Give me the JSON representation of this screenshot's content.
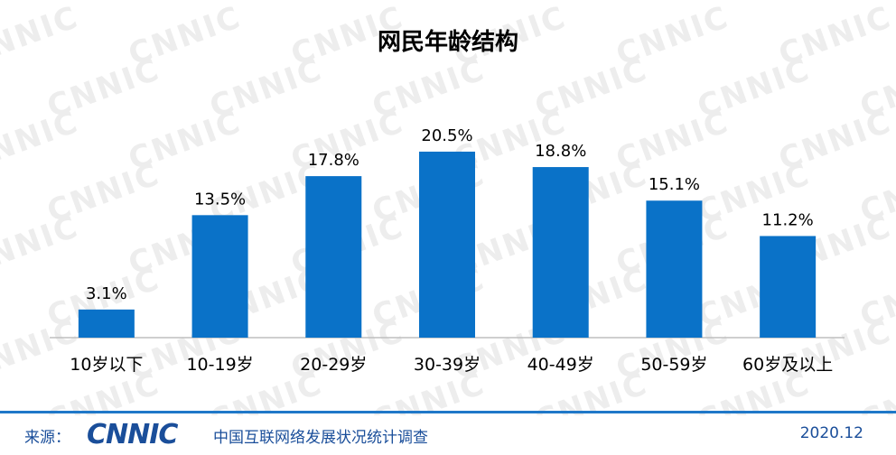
{
  "chart_data": {
    "type": "bar",
    "title": "网民年龄结构",
    "categories": [
      "10岁以下",
      "10-19岁",
      "20-29岁",
      "30-39岁",
      "40-49岁",
      "50-59岁",
      "60岁及以上"
    ],
    "values": [
      3.1,
      13.5,
      17.8,
      20.5,
      18.8,
      15.1,
      11.2
    ],
    "value_labels": [
      "3.1%",
      "13.5%",
      "17.8%",
      "20.5%",
      "18.8%",
      "15.1%",
      "11.2%"
    ],
    "unit": "%",
    "ylim": [
      0,
      22
    ],
    "grid": false,
    "legend": "none",
    "bar_color": "#0a72c8"
  },
  "watermark": {
    "text": "CNNIC"
  },
  "footer": {
    "source_label": "来源：",
    "logo_text": "CNNIC",
    "source_name": "中国互联网络发展状况统计调查",
    "date": "2020.12"
  },
  "colors": {
    "accent": "#1f78c8",
    "footer_text": "#1a4e9a"
  }
}
